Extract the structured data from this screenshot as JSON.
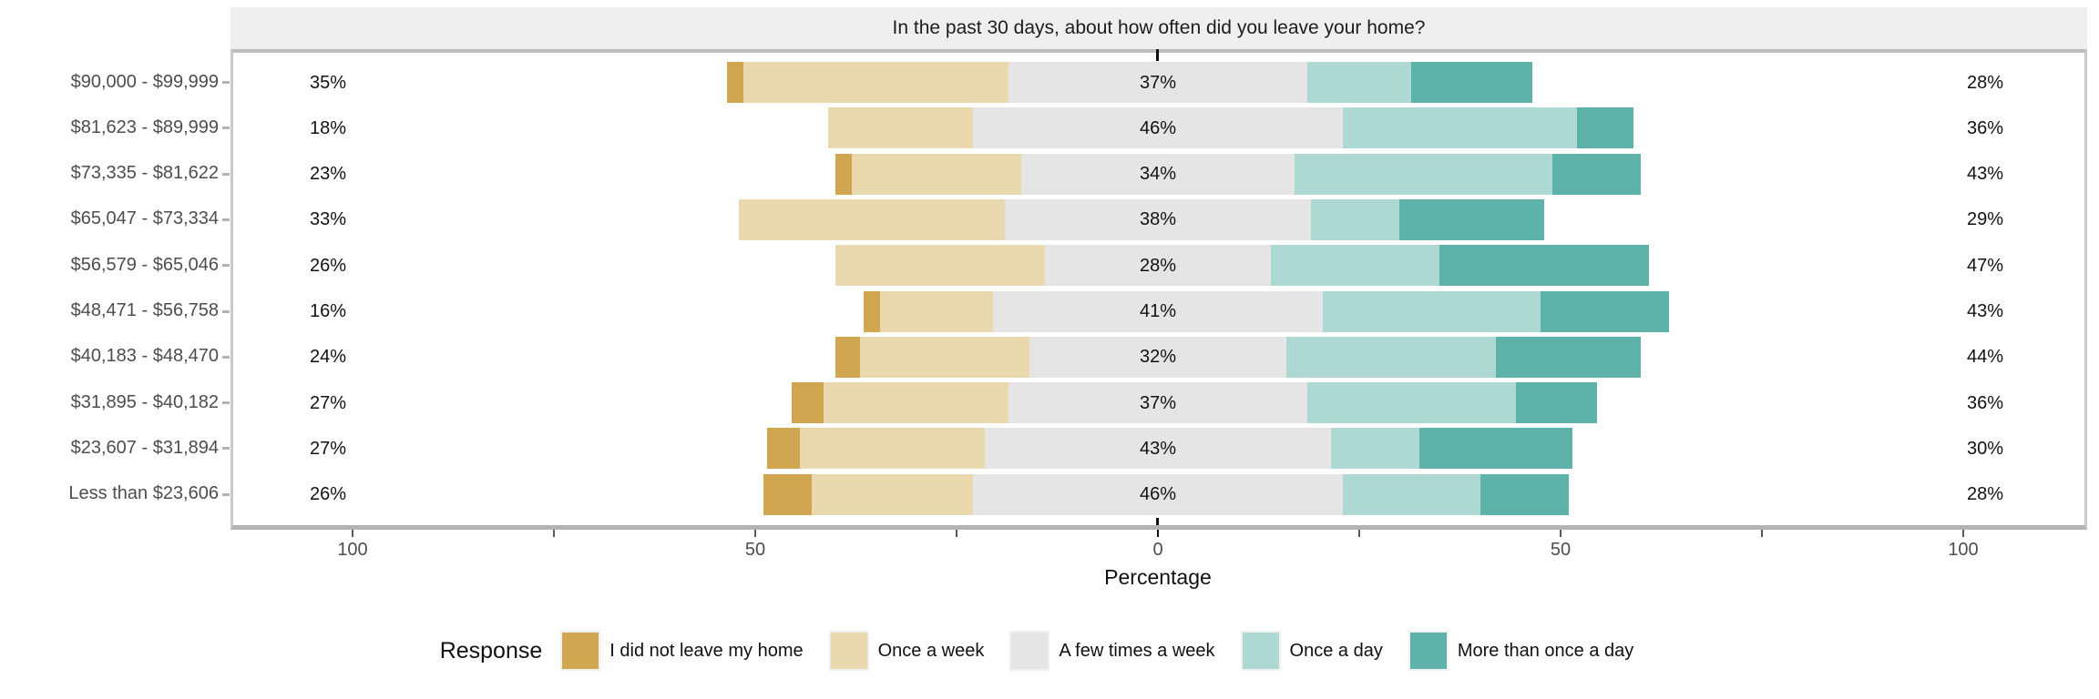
{
  "chart_data": {
    "type": "diverging_stacked_bar",
    "title": "In the past 30 days, about how often did you leave your home?",
    "xlabel": "Percentage",
    "legend_title": "Response",
    "legend_position": "bottom",
    "axis_range": [
      -115,
      115
    ],
    "center_category": "A few times a week",
    "grid": false,
    "categories": [
      "$90,000 - $99,999",
      "$81,623 - $89,999",
      "$73,335 - $81,622",
      "$65,047 - $73,334",
      "$56,579 - $65,046",
      "$48,471 - $56,758",
      "$40,183 - $48,470",
      "$31,895 - $40,182",
      "$23,607 - $31,894",
      "Less than $23,606"
    ],
    "series": [
      {
        "name": "I did not leave my home",
        "color": "#d1a650",
        "values": [
          2,
          0,
          2,
          0,
          0,
          2,
          3,
          4,
          4,
          6
        ]
      },
      {
        "name": "Once a week",
        "color": "#ead9ae",
        "values": [
          33,
          18,
          21,
          33,
          26,
          14,
          21,
          23,
          23,
          20
        ]
      },
      {
        "name": "A few times a week",
        "color": "#e5e5e5",
        "values": [
          37,
          46,
          34,
          38,
          28,
          41,
          32,
          37,
          43,
          46
        ]
      },
      {
        "name": "Once a day",
        "color": "#aed8d2",
        "values": [
          13,
          29,
          32,
          11,
          21,
          27,
          26,
          26,
          11,
          17
        ]
      },
      {
        "name": "More than once a day",
        "color": "#5db3a9",
        "values": [
          15,
          7,
          11,
          18,
          26,
          16,
          18,
          10,
          19,
          11
        ]
      }
    ],
    "data_labels": {
      "left": [
        "35%",
        "18%",
        "23%",
        "33%",
        "26%",
        "16%",
        "24%",
        "27%",
        "27%",
        "26%"
      ],
      "center": [
        "37%",
        "46%",
        "34%",
        "38%",
        "28%",
        "41%",
        "32%",
        "37%",
        "43%",
        "46%"
      ],
      "right": [
        "28%",
        "36%",
        "43%",
        "29%",
        "47%",
        "43%",
        "44%",
        "36%",
        "30%",
        "28%"
      ]
    },
    "x_axis": {
      "major_ticks": [
        {
          "value": -100,
          "label": "100"
        },
        {
          "value": -50,
          "label": "50"
        },
        {
          "value": 0,
          "label": "0"
        },
        {
          "value": 50,
          "label": "50"
        },
        {
          "value": 100,
          "label": "100"
        }
      ],
      "minor_ticks": [
        -75,
        -25,
        25,
        75
      ]
    }
  },
  "style_colors": {
    "strip_background": "#efefef",
    "panel_border": "#bdbdbd",
    "axis_text": "#4d4d4d",
    "label_text": "#121212"
  }
}
